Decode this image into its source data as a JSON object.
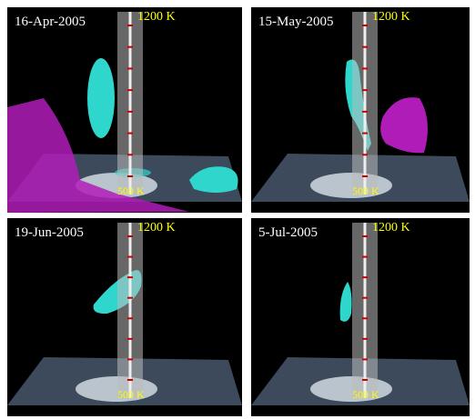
{
  "panels": [
    {
      "date": "16-Apr-2005",
      "top_label": "1200 K",
      "bottom_label": "500 K"
    },
    {
      "date": "15-May-2005",
      "top_label": "1200 K",
      "bottom_label": "500 K"
    },
    {
      "date": "19-Jun-2005",
      "top_label": "1200 K",
      "bottom_label": "500 K"
    },
    {
      "date": "5-Jul-2005",
      "top_label": "1200 K",
      "bottom_label": "500 K"
    }
  ]
}
